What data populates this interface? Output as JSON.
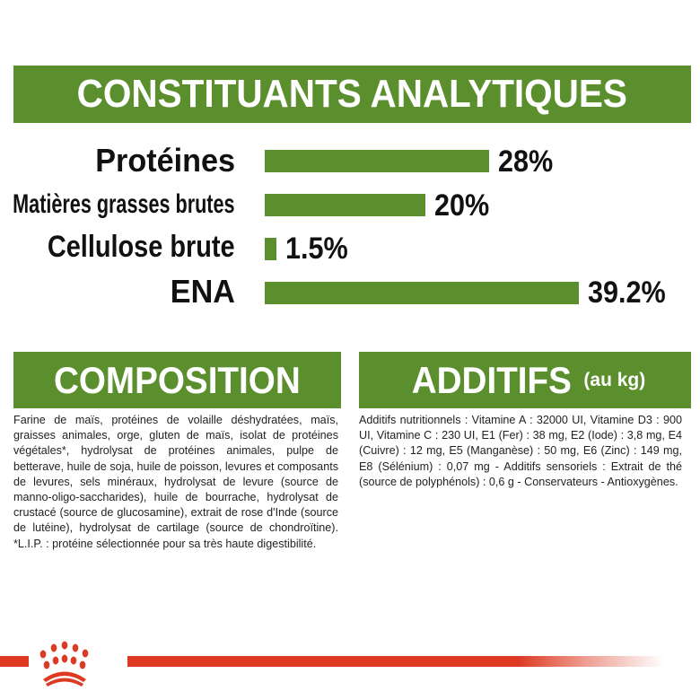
{
  "analytics": {
    "title": "CONSTITUANTS ANALYTIQUES",
    "rows": [
      {
        "label": "Protéines",
        "value": 28,
        "value_label": "28%"
      },
      {
        "label": "Matières grasses brutes",
        "value": 20,
        "value_label": "20%"
      },
      {
        "label": "Cellulose brute",
        "value": 1.5,
        "value_label": "1.5%"
      },
      {
        "label": "ENA",
        "value": 39.2,
        "value_label": "39.2%"
      }
    ]
  },
  "chart_data": {
    "type": "bar",
    "categories": [
      "Protéines",
      "Matières grasses brutes",
      "Cellulose brute",
      "ENA"
    ],
    "values": [
      28,
      20,
      1.5,
      39.2
    ],
    "title": "CONSTITUANTS ANALYTIQUES",
    "orientation": "horizontal",
    "unit": "%",
    "color": "#5b8f2d"
  },
  "composition": {
    "title": "COMPOSITION",
    "text": "Farine de maïs, protéines de volaille déshydratées, maïs, graisses animales, orge, gluten de maïs, isolat de protéines végétales*, hydrolysat de protéines animales, pulpe de betterave, huile de soja, huile de poisson, levures et composants de levures, sels minéraux, hydrolysat de levure (source de manno-oligo-saccharides), huile de bourrache, hydrolysat de crustacé (source de glucosamine), extrait de rose d'Inde (source de lutéine), hydrolysat de cartilage (source de chondroïtine). *L.I.P. : protéine sélectionnée pour sa très haute digestibilité."
  },
  "additifs": {
    "title": "ADDITIFS",
    "subtitle": "(au kg)",
    "text": "Additifs nutritionnels : Vitamine A : 32000 UI, Vitamine D3 : 900 UI, Vitamine C : 230 UI, E1 (Fer) : 38 mg, E2 (Iode) : 3,8 mg, E4 (Cuivre) : 12 mg, E5 (Manganèse) : 50 mg, E6 (Zinc) : 149 mg, E8 (Sélénium) : 0,07 mg - Additifs sensoriels : Extrait de thé (source de polyphénols) : 0,6 g - Conservateurs - Antioxygènes."
  },
  "colors": {
    "green": "#5b8f2d",
    "brand_red": "#dc3a22"
  },
  "logo": {
    "icon": "royal-canin-crown-icon"
  }
}
